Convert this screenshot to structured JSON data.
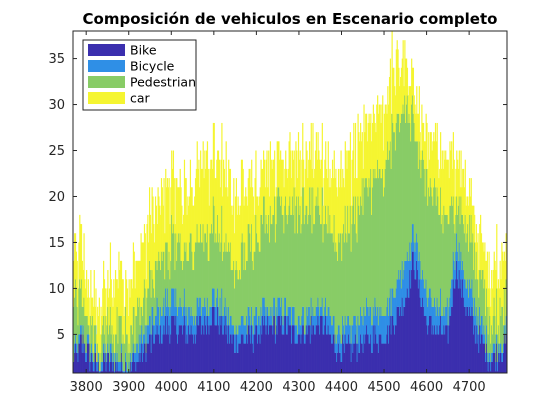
{
  "chart_data": {
    "type": "bar",
    "stacked": true,
    "title": "Composición de vehiculos en Escenario completo",
    "xlabel": "",
    "ylabel": "",
    "xlim": [
      3769,
      3789.5
    ],
    "ylim": [
      0.8,
      38
    ],
    "xlim_data": [
      3769,
      4789
    ],
    "x_ticks": [
      3800,
      3900,
      4000,
      4100,
      4200,
      4300,
      4400,
      4500,
      4600,
      4700
    ],
    "y_ticks": [
      5,
      10,
      15,
      20,
      25,
      30,
      35
    ],
    "legend_position": "top-left",
    "grid": false,
    "x_anchor": [
      3769,
      3790,
      3800,
      3830,
      3850,
      3900,
      3950,
      4000,
      4050,
      4100,
      4150,
      4200,
      4250,
      4300,
      4350,
      4400,
      4450,
      4500,
      4520,
      4550,
      4570,
      4600,
      4650,
      4670,
      4700,
      4750,
      4789
    ],
    "series": [
      {
        "name": "Bike",
        "color": "#3b2fae",
        "anchor": [
          2,
          4,
          3,
          1,
          2,
          1,
          4,
          6,
          5,
          7,
          4,
          5,
          6,
          5,
          6,
          3,
          4,
          5,
          6,
          9,
          13,
          6,
          5,
          12,
          7,
          2,
          4
        ]
      },
      {
        "name": "Bicycle",
        "color": "#2f8fe6",
        "anchor": [
          1,
          1,
          1,
          1,
          1,
          1,
          2,
          3,
          2,
          2,
          2,
          2,
          2,
          2,
          2,
          2,
          3,
          3,
          3,
          4,
          3,
          3,
          2,
          3,
          3,
          1,
          1
        ]
      },
      {
        "name": "Pedestrian",
        "color": "#88cc66",
        "anchor": [
          5,
          4,
          3,
          2,
          3,
          3,
          4,
          6,
          7,
          8,
          6,
          9,
          11,
          12,
          10,
          10,
          13,
          15,
          17,
          17,
          12,
          12,
          10,
          5,
          6,
          4,
          3
        ]
      },
      {
        "name": "car",
        "color": "#f5f531",
        "anchor": [
          6,
          6,
          4,
          4,
          5,
          5,
          7,
          7,
          7,
          8,
          8,
          6,
          6,
          5,
          6,
          7,
          7,
          7,
          7,
          5,
          4,
          5,
          6,
          5,
          5,
          5,
          6
        ]
      }
    ]
  }
}
